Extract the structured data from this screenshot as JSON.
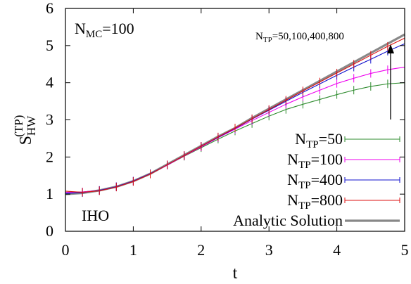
{
  "chart_data": {
    "type": "line",
    "title": "",
    "xlabel": "t",
    "ylabel": {
      "base": "S",
      "sub": "HW",
      "sup": "(TP)"
    },
    "xlim": [
      0,
      5
    ],
    "ylim": [
      0,
      6
    ],
    "x_ticks": [
      0,
      1,
      2,
      3,
      4,
      5
    ],
    "y_ticks": [
      0,
      1,
      2,
      3,
      4,
      5,
      6
    ],
    "grid": false,
    "legend_placement": "bottom-right",
    "annotations": {
      "nmc": {
        "base": "N",
        "sub": "MC",
        "rest": "=100"
      },
      "ntp_list": {
        "base": "N",
        "sub": "TP",
        "rest": "=50,100,400,800"
      },
      "model": "IHO"
    },
    "analytic": {
      "name": "Analytic Solution",
      "color": "#888888",
      "x": [
        0,
        0.25,
        0.5,
        0.75,
        1,
        1.25,
        1.5,
        1.75,
        2,
        2.25,
        2.5,
        2.75,
        3,
        3.25,
        3.5,
        3.75,
        4,
        4.25,
        4.5,
        4.75,
        5
      ],
      "y": [
        1.0,
        1.03,
        1.1,
        1.2,
        1.35,
        1.55,
        1.8,
        2.05,
        2.3,
        2.55,
        2.78,
        3.05,
        3.3,
        3.55,
        3.8,
        4.05,
        4.3,
        4.55,
        4.8,
        5.05,
        5.3
      ]
    },
    "series": [
      {
        "name_base": "N",
        "name_sub": "TP",
        "name_rest": "=50",
        "color": "#2e8b2e",
        "x": [
          0,
          0.25,
          0.5,
          0.75,
          1,
          1.25,
          1.5,
          1.75,
          2,
          2.25,
          2.5,
          2.75,
          3,
          3.25,
          3.5,
          3.75,
          4,
          4.25,
          4.5,
          4.75,
          5
        ],
        "y": [
          1.05,
          1.06,
          1.1,
          1.2,
          1.35,
          1.55,
          1.78,
          2.02,
          2.25,
          2.48,
          2.7,
          2.9,
          3.1,
          3.28,
          3.42,
          3.55,
          3.68,
          3.8,
          3.9,
          3.97,
          4.0
        ]
      },
      {
        "name_base": "N",
        "name_sub": "TP",
        "name_rest": "=100",
        "color": "#ee00ee",
        "x": [
          0,
          0.25,
          0.5,
          0.75,
          1,
          1.25,
          1.5,
          1.75,
          2,
          2.25,
          2.5,
          2.75,
          3,
          3.25,
          3.5,
          3.75,
          4,
          4.25,
          4.5,
          4.75,
          5
        ],
        "y": [
          1.05,
          1.06,
          1.1,
          1.2,
          1.35,
          1.55,
          1.78,
          2.03,
          2.27,
          2.52,
          2.75,
          2.98,
          3.2,
          3.42,
          3.62,
          3.8,
          3.98,
          4.12,
          4.25,
          4.35,
          4.42
        ]
      },
      {
        "name_base": "N",
        "name_sub": "TP",
        "name_rest": "=400",
        "color": "#1010cc",
        "x": [
          0,
          0.25,
          0.5,
          0.75,
          1,
          1.25,
          1.5,
          1.75,
          2,
          2.25,
          2.5,
          2.75,
          3,
          3.25,
          3.5,
          3.75,
          4,
          4.25,
          4.5,
          4.75,
          5
        ],
        "y": [
          1.02,
          1.04,
          1.1,
          1.2,
          1.35,
          1.55,
          1.79,
          2.04,
          2.29,
          2.53,
          2.77,
          3.02,
          3.26,
          3.5,
          3.74,
          3.97,
          4.2,
          4.42,
          4.63,
          4.85,
          5.05
        ]
      },
      {
        "name_base": "N",
        "name_sub": "TP",
        "name_rest": "=800",
        "color": "#dd1010",
        "x": [
          0,
          0.25,
          0.5,
          0.75,
          1,
          1.25,
          1.5,
          1.75,
          2,
          2.25,
          2.5,
          2.75,
          3,
          3.25,
          3.5,
          3.75,
          4,
          4.25,
          4.5,
          4.75,
          5
        ],
        "y": [
          1.08,
          1.05,
          1.09,
          1.19,
          1.34,
          1.54,
          1.79,
          2.04,
          2.29,
          2.54,
          2.78,
          3.03,
          3.28,
          3.53,
          3.78,
          4.02,
          4.26,
          4.5,
          4.74,
          4.98,
          5.2
        ]
      }
    ]
  }
}
